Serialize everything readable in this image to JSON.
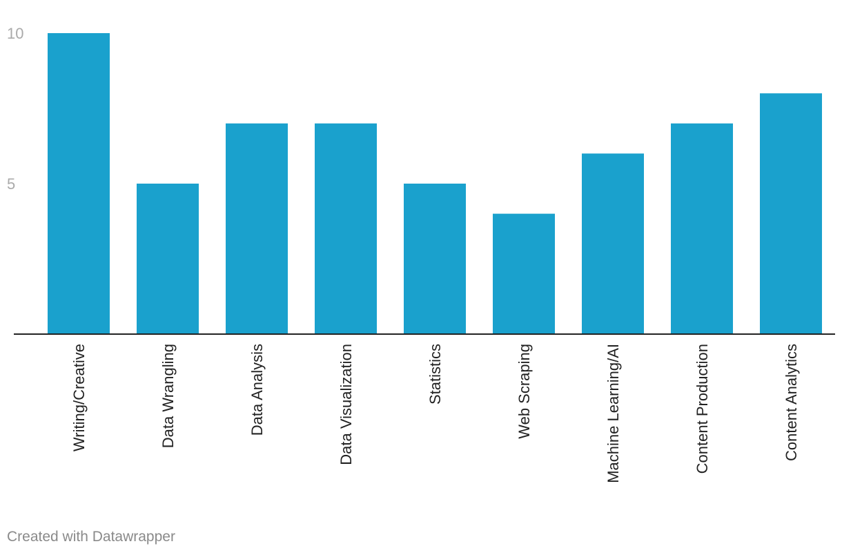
{
  "chart_data": {
    "type": "bar",
    "title": "",
    "xlabel": "",
    "ylabel": "",
    "categories": [
      "Writing/Creative",
      "Data Wrangling",
      "Data Analysis",
      "Data Visualization",
      "Statistics",
      "Web Scraping",
      "Machine Learning/AI",
      "Content Production",
      "Content Analytics"
    ],
    "values": [
      10,
      5,
      7,
      7,
      5,
      4,
      6,
      7,
      8
    ],
    "ylim": [
      0,
      10
    ],
    "yticks": [
      5,
      10
    ],
    "grid": false,
    "legend": "none",
    "bar_color": "#1aa1cd"
  },
  "footer": {
    "credit": "Created with Datawrapper"
  }
}
